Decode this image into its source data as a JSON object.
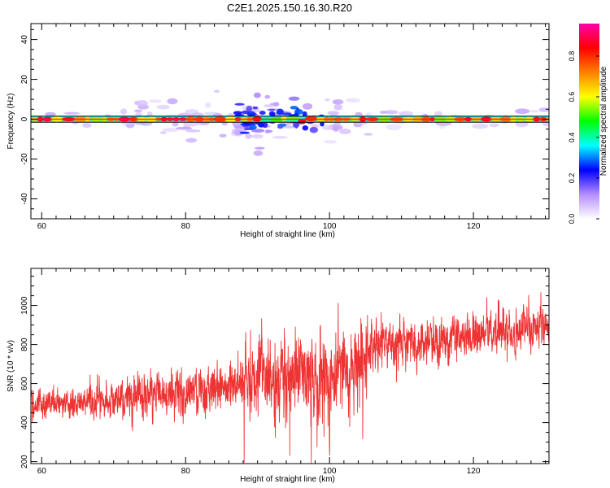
{
  "title": "C2E1.2025.150.16.30.R20",
  "chart_data": [
    {
      "type": "heatmap",
      "xlabel": "Height of straight line (km)",
      "ylabel": "Frequency (Hz)",
      "xlim": [
        58.5,
        130.5
      ],
      "ylim": [
        -50,
        48
      ],
      "x_ticks": [
        60,
        80,
        100,
        120
      ],
      "y_ticks": [
        -40,
        -20,
        0,
        20,
        40
      ],
      "colorbar": {
        "label": "Normalized spectral amplitude",
        "range": [
          0.0,
          0.96
        ],
        "ticks": [
          "0.0",
          "0.2",
          "0.4",
          "0.6",
          "0.8"
        ],
        "colormap": [
          "#ffffff",
          "#b58cff",
          "#0000ff",
          "#00ffff",
          "#00ff00",
          "#ffff00",
          "#ff7f00",
          "#ff0000",
          "#ff00aa"
        ]
      },
      "band": {
        "center_hz": 0,
        "half_width_hz": 1.5
      },
      "scatter_region_km": [
        73,
        106
      ],
      "peak_region_km": [
        89,
        97
      ],
      "grid": false
    },
    {
      "type": "line",
      "xlabel": "Height of straight line (km)",
      "ylabel": "SNR (10 * v/v)",
      "xlim": [
        58.5,
        130.5
      ],
      "ylim": [
        190,
        1190
      ],
      "x_ticks": [
        60,
        80,
        100,
        120
      ],
      "y_ticks": [
        200,
        400,
        600,
        800,
        1000
      ],
      "series_color": "#ee3333",
      "trend_x": [
        58.5,
        70,
        80,
        88,
        95,
        100,
        104,
        106,
        110,
        120,
        130.5
      ],
      "trend_y": [
        490,
        510,
        560,
        620,
        640,
        650,
        680,
        800,
        810,
        840,
        900
      ],
      "grid": false
    }
  ]
}
